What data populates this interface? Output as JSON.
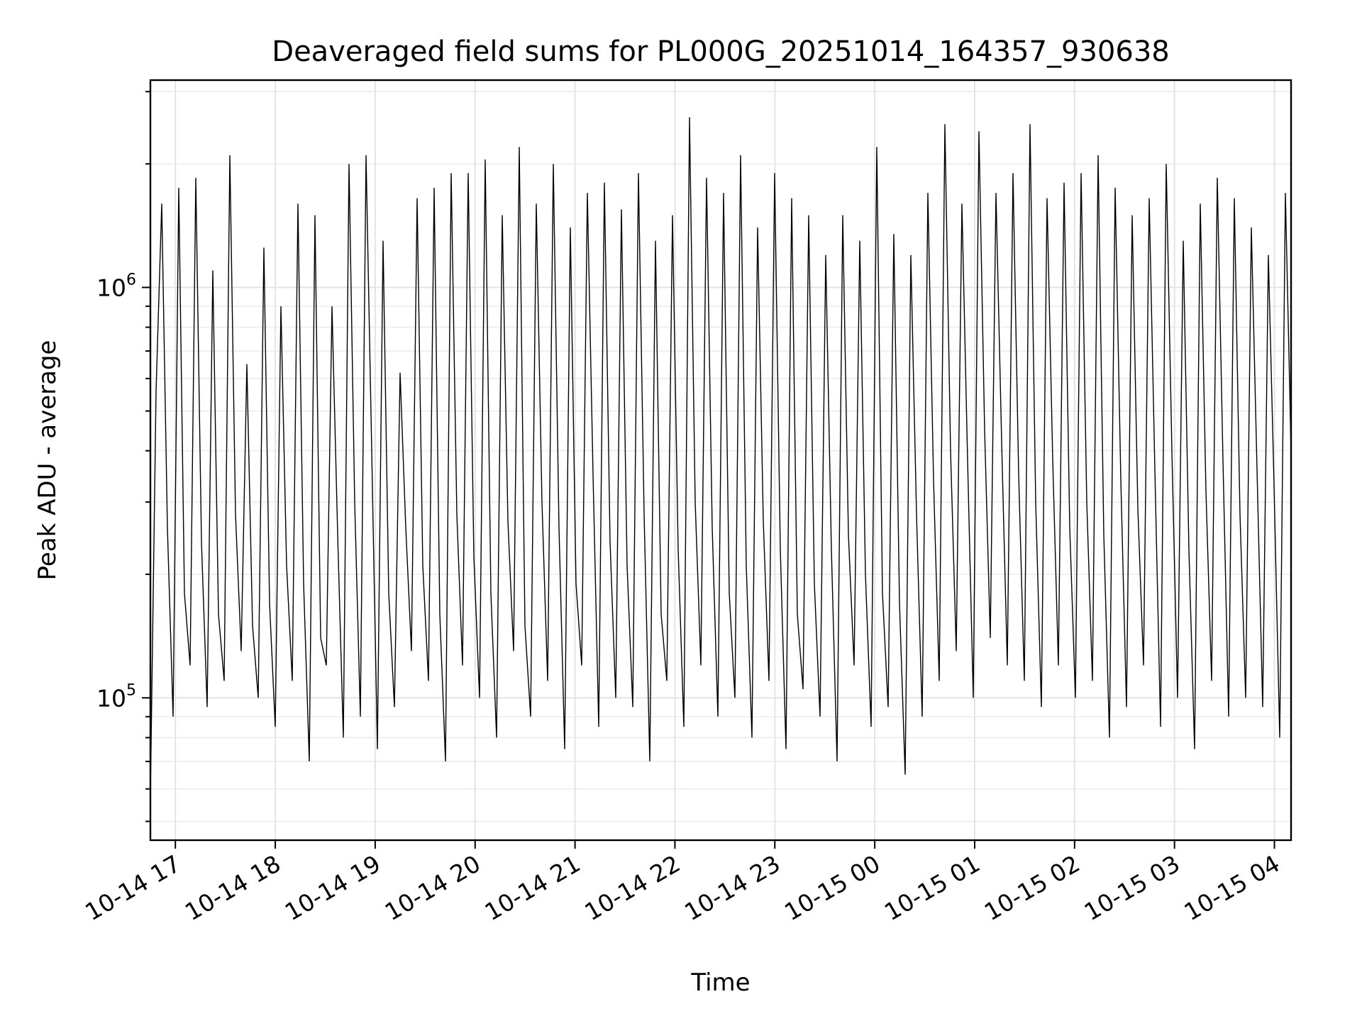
{
  "chart_data": {
    "type": "line",
    "title": "Deaveraged field sums for PL000G_20251014_164357_930638",
    "xlabel": "Time",
    "ylabel": "Peak ADU - average",
    "yscale": "log",
    "xlim": [
      "2025-10-14 16:45",
      "2025-10-15 04:10"
    ],
    "ylim": [
      45000,
      3200000
    ],
    "x_ticks": [
      {
        "value": "2025-10-14 17:00",
        "label": "10-14 17"
      },
      {
        "value": "2025-10-14 18:00",
        "label": "10-14 18"
      },
      {
        "value": "2025-10-14 19:00",
        "label": "10-14 19"
      },
      {
        "value": "2025-10-14 20:00",
        "label": "10-14 20"
      },
      {
        "value": "2025-10-14 21:00",
        "label": "10-14 21"
      },
      {
        "value": "2025-10-14 22:00",
        "label": "10-14 22"
      },
      {
        "value": "2025-10-14 23:00",
        "label": "10-14 23"
      },
      {
        "value": "2025-10-15 00:00",
        "label": "10-15 00"
      },
      {
        "value": "2025-10-15 01:00",
        "label": "10-15 01"
      },
      {
        "value": "2025-10-15 02:00",
        "label": "10-15 02"
      },
      {
        "value": "2025-10-15 03:00",
        "label": "10-15 03"
      },
      {
        "value": "2025-10-15 04:00",
        "label": "10-15 04"
      }
    ],
    "y_ticks": [
      {
        "value": 100000,
        "base": "10",
        "exp": "5"
      },
      {
        "value": 1000000,
        "base": "10",
        "exp": "6"
      }
    ],
    "grid": true,
    "line_color": "#000000",
    "series": [
      {
        "x_start": "2025-10-14 16:45",
        "x_end": "2025-10-15 04:10",
        "y": [
          58000,
          560000,
          1600000,
          260000,
          90000,
          1750000,
          180000,
          120000,
          1850000,
          240000,
          95000,
          1100000,
          160000,
          110000,
          2100000,
          280000,
          130000,
          650000,
          150000,
          100000,
          1250000,
          170000,
          85000,
          900000,
          210000,
          110000,
          1600000,
          190000,
          70000,
          1500000,
          140000,
          120000,
          900000,
          250000,
          80000,
          2000000,
          300000,
          90000,
          2100000,
          400000,
          75000,
          1300000,
          180000,
          95000,
          620000,
          260000,
          130000,
          1650000,
          210000,
          110000,
          1750000,
          160000,
          70000,
          1900000,
          280000,
          120000,
          1900000,
          220000,
          100000,
          2050000,
          180000,
          80000,
          1500000,
          270000,
          130000,
          2200000,
          150000,
          90000,
          1600000,
          300000,
          110000,
          2000000,
          260000,
          75000,
          1400000,
          190000,
          120000,
          1700000,
          350000,
          85000,
          1800000,
          240000,
          100000,
          1550000,
          210000,
          95000,
          1900000,
          280000,
          70000,
          1300000,
          160000,
          110000,
          1500000,
          230000,
          85000,
          2600000,
          300000,
          120000,
          1850000,
          260000,
          90000,
          1700000,
          180000,
          100000,
          2100000,
          210000,
          80000,
          1400000,
          270000,
          110000,
          1900000,
          230000,
          75000,
          1650000,
          160000,
          105000,
          1500000,
          190000,
          90000,
          1200000,
          230000,
          70000,
          1500000,
          250000,
          120000,
          1300000,
          200000,
          85000,
          2200000,
          180000,
          95000,
          1350000,
          170000,
          65000,
          1200000,
          280000,
          90000,
          1700000,
          340000,
          110000,
          2500000,
          400000,
          130000,
          1600000,
          380000,
          100000,
          2400000,
          450000,
          140000,
          1700000,
          420000,
          120000,
          1900000,
          350000,
          110000,
          2500000,
          300000,
          95000,
          1650000,
          380000,
          120000,
          1800000,
          260000,
          100000,
          1900000,
          300000,
          110000,
          2100000,
          250000,
          80000,
          1750000,
          340000,
          95000,
          1500000,
          290000,
          120000,
          1650000,
          360000,
          85000,
          2000000,
          400000,
          100000,
          1300000,
          230000,
          75000,
          1600000,
          320000,
          110000,
          1850000,
          380000,
          90000,
          1650000,
          280000,
          100000,
          1400000,
          360000,
          95000,
          1200000,
          330000,
          80000,
          1700000,
          400000
        ]
      }
    ]
  }
}
